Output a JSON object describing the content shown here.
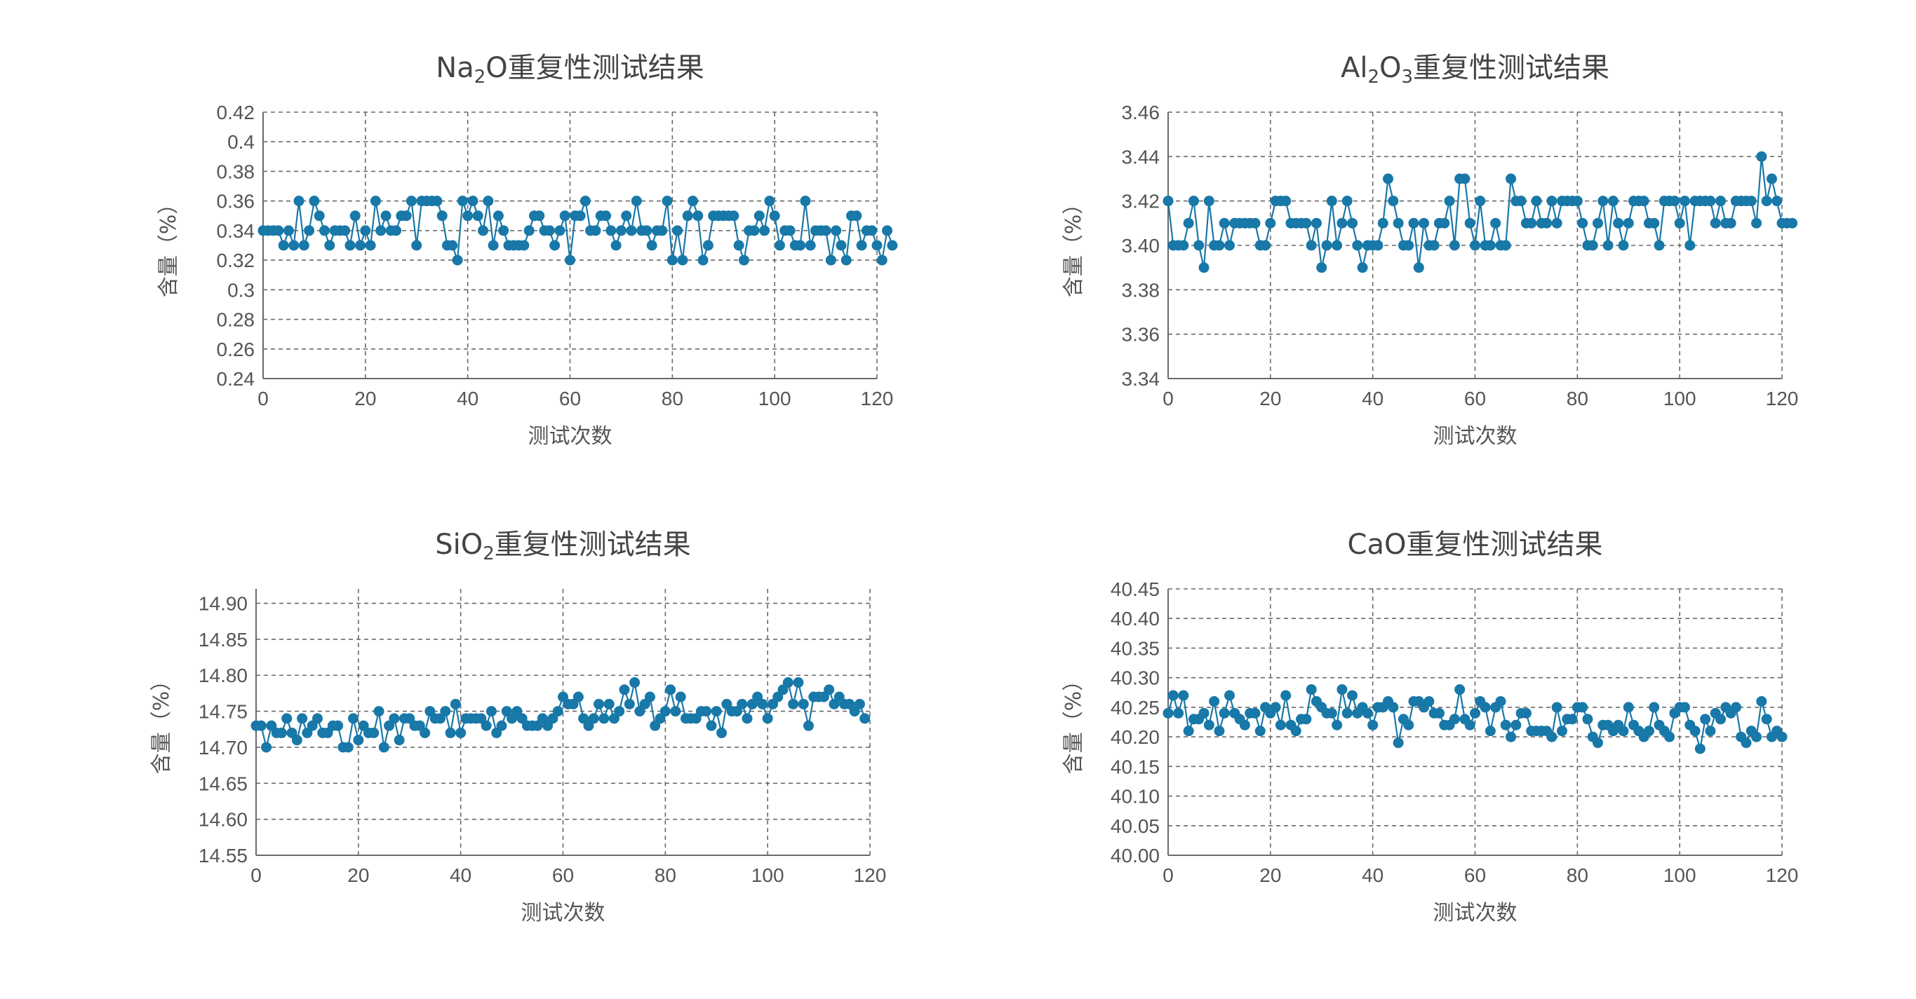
{
  "chart_data": [
    {
      "type": "line",
      "title_parts": [
        "Na",
        "2",
        "O重复性测试结果"
      ],
      "xlabel": "测试次数",
      "ylabel": "含量（%）",
      "xlim": [
        0,
        120
      ],
      "ylim": [
        0.24,
        0.42
      ],
      "xticks": [
        0,
        20,
        40,
        60,
        80,
        100,
        120
      ],
      "xtick_labels": [
        "0",
        "20",
        "40",
        "60",
        "80",
        "100",
        "120"
      ],
      "yticks": [
        0.24,
        0.26,
        0.28,
        0.3,
        0.32,
        0.34,
        0.36,
        0.38,
        0.4,
        0.42
      ],
      "ytick_labels": [
        "0.24",
        "0.26",
        "0.28",
        "0.3",
        "0.32",
        "0.34",
        "0.36",
        "0.38",
        "0.4",
        "0.42"
      ],
      "grid": true,
      "values": [
        0.34,
        0.34,
        0.34,
        0.34,
        0.33,
        0.34,
        0.33,
        0.36,
        0.33,
        0.34,
        0.36,
        0.35,
        0.34,
        0.33,
        0.34,
        0.34,
        0.34,
        0.33,
        0.35,
        0.33,
        0.34,
        0.33,
        0.36,
        0.34,
        0.35,
        0.34,
        0.34,
        0.35,
        0.35,
        0.36,
        0.33,
        0.36,
        0.36,
        0.36,
        0.36,
        0.35,
        0.33,
        0.33,
        0.32,
        0.36,
        0.35,
        0.36,
        0.35,
        0.34,
        0.36,
        0.33,
        0.35,
        0.34,
        0.33,
        0.33,
        0.33,
        0.33,
        0.34,
        0.35,
        0.35,
        0.34,
        0.34,
        0.33,
        0.34,
        0.35,
        0.32,
        0.35,
        0.35,
        0.36,
        0.34,
        0.34,
        0.35,
        0.35,
        0.34,
        0.33,
        0.34,
        0.35,
        0.34,
        0.36,
        0.34,
        0.34,
        0.33,
        0.34,
        0.34,
        0.36,
        0.32,
        0.34,
        0.32,
        0.35,
        0.36,
        0.35,
        0.32,
        0.33,
        0.35,
        0.35,
        0.35,
        0.35,
        0.35,
        0.33,
        0.32,
        0.34,
        0.34,
        0.35,
        0.34,
        0.36,
        0.35,
        0.33,
        0.34,
        0.34,
        0.33,
        0.33,
        0.36,
        0.33,
        0.34,
        0.34,
        0.34,
        0.32,
        0.34,
        0.33,
        0.32,
        0.35,
        0.35,
        0.33,
        0.34,
        0.34,
        0.33,
        0.32,
        0.34,
        0.33
      ]
    },
    {
      "type": "line",
      "title_parts": [
        "Al",
        "2",
        "O",
        "3",
        "重复性测试结果"
      ],
      "xlabel": "测试次数",
      "ylabel": "含量（%）",
      "xlim": [
        0,
        120
      ],
      "ylim": [
        3.34,
        3.46
      ],
      "xticks": [
        0,
        20,
        40,
        60,
        80,
        100,
        120
      ],
      "xtick_labels": [
        "0",
        "20",
        "40",
        "60",
        "80",
        "100",
        "120"
      ],
      "yticks": [
        3.34,
        3.36,
        3.38,
        3.4,
        3.42,
        3.44,
        3.46
      ],
      "ytick_labels": [
        "3.34",
        "3.36",
        "3.38",
        "3.40",
        "3.42",
        "3.44",
        "3.46"
      ],
      "grid": true,
      "values": [
        3.42,
        3.4,
        3.4,
        3.4,
        3.41,
        3.42,
        3.4,
        3.39,
        3.42,
        3.4,
        3.4,
        3.41,
        3.4,
        3.41,
        3.41,
        3.41,
        3.41,
        3.41,
        3.4,
        3.4,
        3.41,
        3.42,
        3.42,
        3.42,
        3.41,
        3.41,
        3.41,
        3.41,
        3.4,
        3.41,
        3.39,
        3.4,
        3.42,
        3.4,
        3.41,
        3.42,
        3.41,
        3.4,
        3.39,
        3.4,
        3.4,
        3.4,
        3.41,
        3.43,
        3.42,
        3.41,
        3.4,
        3.4,
        3.41,
        3.39,
        3.41,
        3.4,
        3.4,
        3.41,
        3.41,
        3.42,
        3.4,
        3.43,
        3.43,
        3.41,
        3.4,
        3.42,
        3.4,
        3.4,
        3.41,
        3.4,
        3.4,
        3.43,
        3.42,
        3.42,
        3.41,
        3.41,
        3.42,
        3.41,
        3.41,
        3.42,
        3.41,
        3.42,
        3.42,
        3.42,
        3.42,
        3.41,
        3.4,
        3.4,
        3.41,
        3.42,
        3.4,
        3.42,
        3.41,
        3.4,
        3.41,
        3.42,
        3.42,
        3.42,
        3.41,
        3.41,
        3.4,
        3.42,
        3.42,
        3.42,
        3.41,
        3.42,
        3.4,
        3.42,
        3.42,
        3.42,
        3.42,
        3.41,
        3.42,
        3.41,
        3.41,
        3.42,
        3.42,
        3.42,
        3.42,
        3.41,
        3.44,
        3.42,
        3.43,
        3.42,
        3.41,
        3.41,
        3.41
      ]
    },
    {
      "type": "line",
      "title_parts": [
        "SiO",
        "2",
        "重复性测试结果"
      ],
      "xlabel": "测试次数",
      "ylabel": "含量（%）",
      "xlim": [
        0,
        120
      ],
      "ylim": [
        14.55,
        14.92
      ],
      "xticks": [
        0,
        20,
        40,
        60,
        80,
        100,
        120
      ],
      "xtick_labels": [
        "0",
        "20",
        "40",
        "60",
        "80",
        "100",
        "120"
      ],
      "yticks": [
        14.55,
        14.6,
        14.65,
        14.7,
        14.75,
        14.8,
        14.85,
        14.9
      ],
      "ytick_labels": [
        "14.55",
        "14.60",
        "14.65",
        "14.70",
        "14.75",
        "14.80",
        "14.85",
        "14.90"
      ],
      "grid": true,
      "values": [
        14.73,
        14.73,
        14.7,
        14.73,
        14.72,
        14.72,
        14.74,
        14.72,
        14.71,
        14.74,
        14.72,
        14.73,
        14.74,
        14.72,
        14.72,
        14.73,
        14.73,
        14.7,
        14.7,
        14.74,
        14.71,
        14.73,
        14.72,
        14.72,
        14.75,
        14.7,
        14.73,
        14.74,
        14.71,
        14.74,
        14.74,
        14.73,
        14.73,
        14.72,
        14.75,
        14.74,
        14.74,
        14.75,
        14.72,
        14.76,
        14.72,
        14.74,
        14.74,
        14.74,
        14.74,
        14.73,
        14.75,
        14.72,
        14.73,
        14.75,
        14.74,
        14.75,
        14.74,
        14.73,
        14.73,
        14.73,
        14.74,
        14.73,
        14.74,
        14.75,
        14.77,
        14.76,
        14.76,
        14.77,
        14.74,
        14.73,
        14.74,
        14.76,
        14.74,
        14.76,
        14.74,
        14.75,
        14.78,
        14.76,
        14.79,
        14.75,
        14.76,
        14.77,
        14.73,
        14.74,
        14.75,
        14.78,
        14.75,
        14.77,
        14.74,
        14.74,
        14.74,
        14.75,
        14.75,
        14.73,
        14.75,
        14.72,
        14.76,
        14.75,
        14.75,
        14.76,
        14.74,
        14.76,
        14.77,
        14.76,
        14.74,
        14.76,
        14.77,
        14.78,
        14.79,
        14.76,
        14.79,
        14.76,
        14.73,
        14.77,
        14.77,
        14.77,
        14.78,
        14.76,
        14.77,
        14.76,
        14.76,
        14.75,
        14.76,
        14.74
      ]
    },
    {
      "type": "line",
      "title_parts": [
        "CaO重复性测试结果"
      ],
      "xlabel": "测试次数",
      "ylabel": "含量（%）",
      "xlim": [
        0,
        120
      ],
      "ylim": [
        40.0,
        40.45
      ],
      "xticks": [
        0,
        20,
        40,
        60,
        80,
        100,
        120
      ],
      "xtick_labels": [
        "0",
        "20",
        "40",
        "60",
        "80",
        "100",
        "120"
      ],
      "yticks": [
        40.0,
        40.05,
        40.1,
        40.15,
        40.2,
        40.25,
        40.3,
        40.35,
        40.4,
        40.45
      ],
      "ytick_labels": [
        "40.00",
        "40.05",
        "40.10",
        "40.15",
        "40.20",
        "40.25",
        "40.30",
        "40.35",
        "40.40",
        "40.45"
      ],
      "grid": true,
      "values": [
        40.24,
        40.27,
        40.24,
        40.27,
        40.21,
        40.23,
        40.23,
        40.24,
        40.22,
        40.26,
        40.21,
        40.24,
        40.27,
        40.24,
        40.23,
        40.22,
        40.24,
        40.24,
        40.21,
        40.25,
        40.24,
        40.25,
        40.22,
        40.27,
        40.22,
        40.21,
        40.23,
        40.23,
        40.28,
        40.26,
        40.25,
        40.24,
        40.24,
        40.22,
        40.28,
        40.24,
        40.27,
        40.24,
        40.25,
        40.24,
        40.22,
        40.25,
        40.25,
        40.26,
        40.25,
        40.19,
        40.23,
        40.22,
        40.26,
        40.26,
        40.25,
        40.26,
        40.24,
        40.24,
        40.22,
        40.22,
        40.23,
        40.28,
        40.23,
        40.22,
        40.24,
        40.26,
        40.25,
        40.21,
        40.25,
        40.26,
        40.22,
        40.2,
        40.22,
        40.24,
        40.24,
        40.21,
        40.21,
        40.21,
        40.21,
        40.2,
        40.25,
        40.21,
        40.23,
        40.23,
        40.25,
        40.25,
        40.23,
        40.2,
        40.19,
        40.22,
        40.22,
        40.21,
        40.22,
        40.21,
        40.25,
        40.22,
        40.21,
        40.2,
        40.21,
        40.25,
        40.22,
        40.21,
        40.2,
        40.24,
        40.25,
        40.25,
        40.22,
        40.21,
        40.18,
        40.23,
        40.21,
        40.24,
        40.23,
        40.25,
        40.24,
        40.25,
        40.2,
        40.19,
        40.21,
        40.2,
        40.26,
        40.23,
        40.2,
        40.21,
        40.2
      ]
    }
  ]
}
